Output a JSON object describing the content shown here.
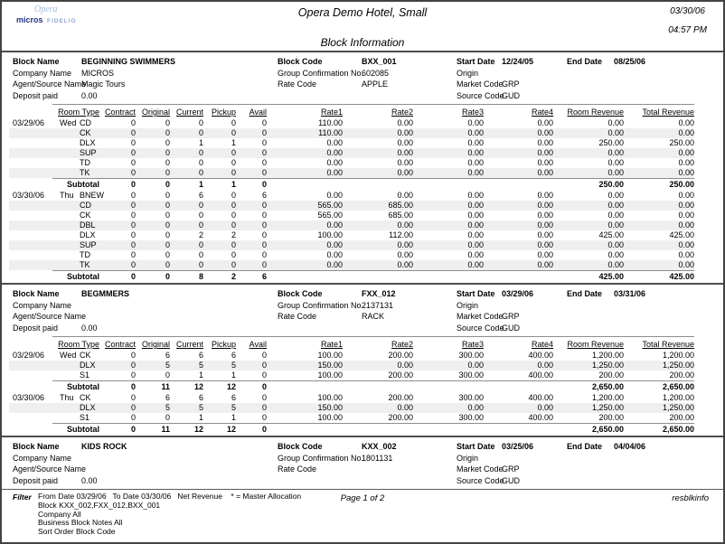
{
  "header": {
    "hotel_name": "Opera Demo Hotel, Small",
    "report_title": "Block Information",
    "date": "03/30/06",
    "time": "04:57 PM",
    "logo_opera": "Opera",
    "logo_micros": "micros",
    "logo_fidelio": "FIDELIO"
  },
  "labels": {
    "block_name": "Block Name",
    "company_name": "Company Name",
    "agent_source": "Agent/Source Name",
    "deposit_paid": "Deposit paid",
    "block_code": "Block Code",
    "group_conf": "Group Confirmation No.",
    "rate_code": "Rate Code",
    "start_date": "Start Date",
    "end_date": "End Date",
    "origin": "Origin",
    "market_code": "Market Code",
    "source_code": "Source Code",
    "subtotal": "Subtotal"
  },
  "columns": [
    "Room Type",
    "Contract",
    "Original",
    "Current",
    "Pickup",
    "Avail",
    "Rate1",
    "Rate2",
    "Rate3",
    "Rate4",
    "Room Revenue",
    "Total Revenue"
  ],
  "blocks": [
    {
      "block_name": "BEGINNING SWIMMERS",
      "company_name": "MICROS",
      "agent_source": "Magic Tours",
      "deposit_paid": "0.00",
      "block_code": "BXX_001",
      "group_confirmation_no": "602085",
      "rate_code": "APPLE",
      "start_date": "12/24/05",
      "end_date": "08/25/06",
      "origin": "",
      "market_code": "GRP",
      "source_code": "GUD",
      "groups": [
        {
          "date": "03/29/06",
          "day": "Wed",
          "rows": [
            [
              "CD",
              "0",
              "0",
              "0",
              "0",
              "0",
              "110.00",
              "0.00",
              "0.00",
              "0.00",
              "0.00",
              "0.00"
            ],
            [
              "CK",
              "0",
              "0",
              "0",
              "0",
              "0",
              "110.00",
              "0.00",
              "0.00",
              "0.00",
              "0.00",
              "0.00"
            ],
            [
              "DLX",
              "0",
              "0",
              "1",
              "1",
              "0",
              "0.00",
              "0.00",
              "0.00",
              "0.00",
              "250.00",
              "250.00"
            ],
            [
              "SUP",
              "0",
              "0",
              "0",
              "0",
              "0",
              "0.00",
              "0.00",
              "0.00",
              "0.00",
              "0.00",
              "0.00"
            ],
            [
              "TD",
              "0",
              "0",
              "0",
              "0",
              "0",
              "0.00",
              "0.00",
              "0.00",
              "0.00",
              "0.00",
              "0.00"
            ],
            [
              "TK",
              "0",
              "0",
              "0",
              "0",
              "0",
              "0.00",
              "0.00",
              "0.00",
              "0.00",
              "0.00",
              "0.00"
            ]
          ],
          "subtotal": {
            "values": [
              "0",
              "0",
              "1",
              "1",
              "0"
            ],
            "room_revenue": "250.00",
            "total_revenue": "250.00"
          }
        },
        {
          "date": "03/30/06",
          "day": "Thu",
          "rows": [
            [
              "BNEW",
              "0",
              "0",
              "6",
              "0",
              "6",
              "0.00",
              "0.00",
              "0.00",
              "0.00",
              "0.00",
              "0.00"
            ],
            [
              "CD",
              "0",
              "0",
              "0",
              "0",
              "0",
              "565.00",
              "685.00",
              "0.00",
              "0.00",
              "0.00",
              "0.00"
            ],
            [
              "CK",
              "0",
              "0",
              "0",
              "0",
              "0",
              "565.00",
              "685.00",
              "0.00",
              "0.00",
              "0.00",
              "0.00"
            ],
            [
              "DBL",
              "0",
              "0",
              "0",
              "0",
              "0",
              "0.00",
              "0.00",
              "0.00",
              "0.00",
              "0.00",
              "0.00"
            ],
            [
              "DLX",
              "0",
              "0",
              "2",
              "2",
              "0",
              "100.00",
              "112.00",
              "0.00",
              "0.00",
              "425.00",
              "425.00"
            ],
            [
              "SUP",
              "0",
              "0",
              "0",
              "0",
              "0",
              "0.00",
              "0.00",
              "0.00",
              "0.00",
              "0.00",
              "0.00"
            ],
            [
              "TD",
              "0",
              "0",
              "0",
              "0",
              "0",
              "0.00",
              "0.00",
              "0.00",
              "0.00",
              "0.00",
              "0.00"
            ],
            [
              "TK",
              "0",
              "0",
              "0",
              "0",
              "0",
              "0.00",
              "0.00",
              "0.00",
              "0.00",
              "0.00",
              "0.00"
            ]
          ],
          "subtotal": {
            "values": [
              "0",
              "0",
              "8",
              "2",
              "6"
            ],
            "room_revenue": "425.00",
            "total_revenue": "425.00"
          }
        }
      ]
    },
    {
      "block_name": "BEGMMERS",
      "company_name": "",
      "agent_source": "",
      "deposit_paid": "0.00",
      "block_code": "FXX_012",
      "group_confirmation_no": "2137131",
      "rate_code": "RACK",
      "start_date": "03/29/06",
      "end_date": "03/31/06",
      "origin": "",
      "market_code": "GRP",
      "source_code": "GUD",
      "groups": [
        {
          "date": "03/29/06",
          "day": "Wed",
          "rows": [
            [
              "CK",
              "0",
              "6",
              "6",
              "6",
              "0",
              "100.00",
              "200.00",
              "300.00",
              "400.00",
              "1,200.00",
              "1,200.00"
            ],
            [
              "DLX",
              "0",
              "5",
              "5",
              "5",
              "0",
              "150.00",
              "0.00",
              "0.00",
              "0.00",
              "1,250.00",
              "1,250.00"
            ],
            [
              "S1",
              "0",
              "0",
              "1",
              "1",
              "0",
              "100.00",
              "200.00",
              "300.00",
              "400.00",
              "200.00",
              "200.00"
            ]
          ],
          "subtotal": {
            "values": [
              "0",
              "11",
              "12",
              "12",
              "0"
            ],
            "room_revenue": "2,650.00",
            "total_revenue": "2,650.00"
          }
        },
        {
          "date": "03/30/06",
          "day": "Thu",
          "rows": [
            [
              "CK",
              "0",
              "6",
              "6",
              "6",
              "0",
              "100.00",
              "200.00",
              "300.00",
              "400.00",
              "1,200.00",
              "1,200.00"
            ],
            [
              "DLX",
              "0",
              "5",
              "5",
              "5",
              "0",
              "150.00",
              "0.00",
              "0.00",
              "0.00",
              "1,250.00",
              "1,250.00"
            ],
            [
              "S1",
              "0",
              "0",
              "1",
              "1",
              "0",
              "100.00",
              "200.00",
              "300.00",
              "400.00",
              "200.00",
              "200.00"
            ]
          ],
          "subtotal": {
            "values": [
              "0",
              "11",
              "12",
              "12",
              "0"
            ],
            "room_revenue": "2,650.00",
            "total_revenue": "2,650.00"
          }
        }
      ]
    },
    {
      "block_name": "KIDS ROCK",
      "company_name": "",
      "agent_source": "",
      "deposit_paid": "0.00",
      "block_code": "KXX_002",
      "group_confirmation_no": "1801131",
      "rate_code": "",
      "start_date": "03/25/06",
      "end_date": "04/04/06",
      "origin": "",
      "market_code": "GRP",
      "source_code": "GUD",
      "groups": []
    }
  ],
  "footer": {
    "filter_label": "Filter",
    "filter_lines": [
      "From Date 03/29/06   To Date 03/30/06   Net Revenue    * = Master Allocation",
      "Block KXX_002,FXX_012,BXX_001",
      "Company All",
      "Business Block Notes All",
      "Sort Order Block Code"
    ],
    "page": "Page 1 of 2",
    "report_id": "resblkinfo"
  }
}
